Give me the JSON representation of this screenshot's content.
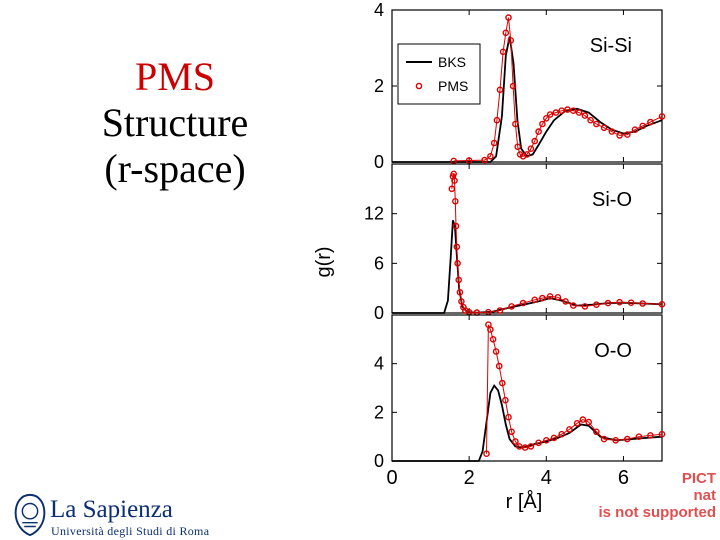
{
  "slide": {
    "title_line1": "PMS",
    "title_line2": "Structure",
    "title_line3": "(r-space)"
  },
  "logo": {
    "name": "La Sapienza",
    "subtitle": "Università degli Studi di Roma"
  },
  "pict_placeholder": {
    "line1": "PICT",
    "line2": "nat",
    "line3": "is not supported"
  },
  "colors": {
    "bks": "#000000",
    "pms": "#dd0000",
    "axis": "#000000",
    "logo_blue": "#0b2f73"
  },
  "chart_data": {
    "type": "line",
    "xlabel": "r [Å]",
    "ylabel": "g(r)",
    "xlim": [
      0,
      7
    ],
    "x_ticks": [
      "0",
      "2",
      "4",
      "6"
    ],
    "legend": {
      "position": "top-left of top panel",
      "entries": [
        "BKS",
        "PMS"
      ]
    },
    "panels": [
      {
        "label": "Si-Si",
        "ylim": [
          0,
          4
        ],
        "y_ticks": [
          "0",
          "2",
          "4"
        ],
        "series": [
          {
            "name": "BKS",
            "style": "line",
            "x": [
              0,
              2.55,
              2.7,
              2.85,
              2.95,
              3.05,
              3.15,
              3.25,
              3.35,
              3.5,
              3.65,
              3.8,
              4.0,
              4.2,
              4.5,
              4.8,
              5.1,
              5.4,
              5.7,
              6.0,
              6.3,
              6.6,
              7.0
            ],
            "y": [
              0,
              0,
              0.15,
              1.2,
              2.8,
              3.3,
              2.6,
              1.1,
              0.35,
              0.15,
              0.2,
              0.45,
              0.8,
              1.1,
              1.35,
              1.4,
              1.3,
              1.05,
              0.85,
              0.75,
              0.8,
              0.95,
              1.1
            ]
          },
          {
            "name": "PMS",
            "style": "markers",
            "x": [
              1.6,
              2.0,
              2.4,
              2.55,
              2.65,
              2.72,
              2.8,
              2.88,
              2.95,
              3.02,
              3.08,
              3.14,
              3.2,
              3.26,
              3.32,
              3.4,
              3.5,
              3.6,
              3.7,
              3.8,
              3.9,
              4.0,
              4.1,
              4.25,
              4.4,
              4.55,
              4.7,
              4.85,
              5.0,
              5.15,
              5.3,
              5.5,
              5.7,
              5.9,
              6.1,
              6.3,
              6.5,
              6.7,
              7.0
            ],
            "y": [
              0.03,
              0.04,
              0.05,
              0.15,
              0.5,
              1.1,
              1.9,
              2.9,
              3.4,
              3.8,
              3.2,
              2.0,
              1.0,
              0.4,
              0.2,
              0.15,
              0.2,
              0.35,
              0.55,
              0.8,
              1.0,
              1.15,
              1.25,
              1.3,
              1.35,
              1.38,
              1.35,
              1.3,
              1.22,
              1.1,
              1.0,
              0.9,
              0.8,
              0.7,
              0.72,
              0.85,
              0.95,
              1.05,
              1.2
            ]
          }
        ]
      },
      {
        "label": "Si-O",
        "ylim": [
          0,
          18
        ],
        "y_ticks": [
          "0",
          "6",
          "12"
        ],
        "series": [
          {
            "name": "BKS",
            "style": "line",
            "x": [
              0,
              1.35,
              1.45,
              1.52,
              1.58,
              1.63,
              1.68,
              1.74,
              1.82,
              1.95,
              2.2,
              2.6,
              3.0,
              3.4,
              3.8,
              4.1,
              4.4,
              4.8,
              5.2,
              5.6,
              6.0,
              6.5,
              7.0
            ],
            "y": [
              0,
              0,
              1.5,
              6.5,
              11.2,
              10.5,
              7.0,
              3.0,
              0.8,
              0.1,
              0.05,
              0.15,
              0.6,
              1.0,
              1.4,
              1.8,
              1.5,
              0.9,
              1.0,
              1.2,
              1.25,
              1.15,
              1.05
            ]
          },
          {
            "name": "PMS",
            "style": "markers",
            "x": [
              1.55,
              1.58,
              1.6,
              1.62,
              1.64,
              1.66,
              1.68,
              1.7,
              1.73,
              1.76,
              1.8,
              1.85,
              1.9,
              2.0,
              2.2,
              2.5,
              2.8,
              3.1,
              3.4,
              3.7,
              3.9,
              4.1,
              4.3,
              4.5,
              4.7,
              5.0,
              5.3,
              5.6,
              5.9,
              6.2,
              6.5,
              7.0
            ],
            "y": [
              15.0,
              16.5,
              16.8,
              16.0,
              13.5,
              10.5,
              8.0,
              6.0,
              4.0,
              2.5,
              1.4,
              0.7,
              0.3,
              0.1,
              0.05,
              0.1,
              0.3,
              0.8,
              1.2,
              1.6,
              1.8,
              2.0,
              1.9,
              1.4,
              0.9,
              0.8,
              1.0,
              1.2,
              1.3,
              1.25,
              1.15,
              1.05
            ]
          }
        ]
      },
      {
        "label": "O-O",
        "ylim": [
          0,
          6
        ],
        "y_ticks": [
          "0",
          "2",
          "4"
        ],
        "series": [
          {
            "name": "BKS",
            "style": "line",
            "x": [
              0,
              2.25,
              2.35,
              2.45,
              2.55,
              2.65,
              2.75,
              2.85,
              2.95,
              3.05,
              3.2,
              3.4,
              3.7,
              4.0,
              4.3,
              4.6,
              4.9,
              5.1,
              5.4,
              5.8,
              6.2,
              6.6,
              7.0
            ],
            "y": [
              0,
              0,
              0.4,
              1.6,
              2.8,
              3.1,
              2.9,
              2.3,
              1.5,
              0.9,
              0.6,
              0.55,
              0.7,
              0.8,
              0.95,
              1.15,
              1.5,
              1.45,
              1.0,
              0.85,
              0.9,
              0.95,
              1.0
            ]
          },
          {
            "name": "PMS",
            "style": "markers",
            "x": [
              2.45,
              2.5,
              2.55,
              2.62,
              2.7,
              2.78,
              2.86,
              2.94,
              3.02,
              3.1,
              3.2,
              3.3,
              3.45,
              3.6,
              3.8,
              4.0,
              4.2,
              4.4,
              4.6,
              4.8,
              4.95,
              5.1,
              5.3,
              5.5,
              5.8,
              6.1,
              6.4,
              6.7,
              7.0
            ],
            "y": [
              0.3,
              5.6,
              5.4,
              5.0,
              4.5,
              3.9,
              3.2,
              2.5,
              1.8,
              1.2,
              0.8,
              0.6,
              0.55,
              0.6,
              0.75,
              0.85,
              0.95,
              1.1,
              1.3,
              1.55,
              1.7,
              1.6,
              1.2,
              0.9,
              0.85,
              0.9,
              1.0,
              1.05,
              1.1
            ]
          }
        ]
      }
    ]
  }
}
